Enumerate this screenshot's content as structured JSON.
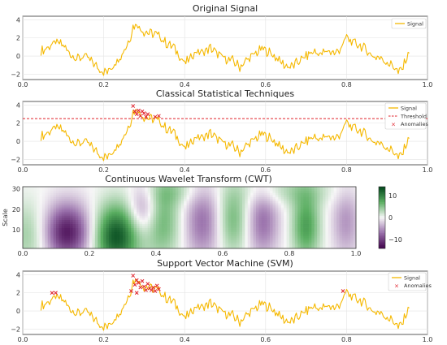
{
  "chart_data": [
    {
      "type": "line",
      "title": "Original Signal",
      "x_range": [
        0,
        1
      ],
      "y_range": [
        -2.6,
        4.4
      ],
      "x_ticks": [
        "0.0",
        "0.2",
        "0.4",
        "0.6",
        "0.8",
        "1.0"
      ],
      "x_tick_values": [
        0,
        0.2,
        0.4,
        0.6,
        0.8,
        1.0
      ],
      "y_ticks": [
        "−2",
        "0",
        "2",
        "4"
      ],
      "y_tick_values": [
        -2,
        0,
        2,
        4
      ],
      "grid": true,
      "legend_position": "top-right",
      "series": [
        {
          "name": "Signal",
          "color": "#f5b800",
          "control_points": [
            [
              0,
              0.5
            ],
            [
              0.02,
              1.0
            ],
            [
              0.04,
              1.5
            ],
            [
              0.06,
              1.2
            ],
            [
              0.08,
              0.2
            ],
            [
              0.1,
              -0.3
            ],
            [
              0.12,
              0.0
            ],
            [
              0.14,
              -0.7
            ],
            [
              0.16,
              -1.5
            ],
            [
              0.18,
              -1.8
            ],
            [
              0.2,
              -0.8
            ],
            [
              0.22,
              0.2
            ],
            [
              0.24,
              1.8
            ],
            [
              0.25,
              3.2
            ],
            [
              0.26,
              3.6
            ],
            [
              0.27,
              3.0
            ],
            [
              0.28,
              2.7
            ],
            [
              0.3,
              2.5
            ],
            [
              0.32,
              2.3
            ],
            [
              0.34,
              1.4
            ],
            [
              0.36,
              1.0
            ],
            [
              0.38,
              -0.2
            ],
            [
              0.39,
              -0.8
            ],
            [
              0.4,
              -0.5
            ],
            [
              0.42,
              0.5
            ],
            [
              0.44,
              0.4
            ],
            [
              0.46,
              0.9
            ],
            [
              0.48,
              0.2
            ],
            [
              0.5,
              -0.3
            ],
            [
              0.52,
              -0.5
            ],
            [
              0.54,
              -1.2
            ],
            [
              0.56,
              -0.4
            ],
            [
              0.58,
              0.2
            ],
            [
              0.6,
              0.8
            ],
            [
              0.62,
              0.4
            ],
            [
              0.64,
              -0.2
            ],
            [
              0.66,
              -1.0
            ],
            [
              0.68,
              -1.2
            ],
            [
              0.7,
              -0.6
            ],
            [
              0.72,
              0.0
            ],
            [
              0.74,
              0.5
            ],
            [
              0.76,
              0.2
            ],
            [
              0.78,
              0.6
            ],
            [
              0.8,
              0.3
            ],
            [
              0.82,
              1.2
            ],
            [
              0.83,
              2.2
            ],
            [
              0.84,
              1.6
            ],
            [
              0.86,
              1.3
            ],
            [
              0.88,
              0.8
            ],
            [
              0.9,
              0.0
            ],
            [
              0.92,
              -0.2
            ],
            [
              0.94,
              -0.7
            ],
            [
              0.96,
              -1.2
            ],
            [
              0.97,
              -1.8
            ],
            [
              0.98,
              -1.5
            ],
            [
              0.99,
              -0.5
            ],
            [
              1.0,
              0.5
            ]
          ]
        }
      ]
    },
    {
      "type": "line",
      "title": "Classical Statistical Techniques",
      "x_range": [
        0,
        1
      ],
      "y_range": [
        -2.6,
        4.4
      ],
      "x_ticks": [
        "0.0",
        "0.2",
        "0.4",
        "0.6",
        "0.8",
        "1.0"
      ],
      "x_tick_values": [
        0,
        0.2,
        0.4,
        0.6,
        0.8,
        1.0
      ],
      "y_ticks": [
        "−2",
        "0",
        "2",
        "4"
      ],
      "y_tick_values": [
        -2,
        0,
        2,
        4
      ],
      "grid": true,
      "legend_position": "top-right",
      "threshold": {
        "name": "Threshold",
        "value": 2.5,
        "color": "#e0202a"
      },
      "anomalies": {
        "name": "Anomalies",
        "color": "#e0202a",
        "points": [
          [
            0.25,
            3.9
          ],
          [
            0.255,
            3.3
          ],
          [
            0.26,
            3.0
          ],
          [
            0.265,
            3.4
          ],
          [
            0.27,
            2.8
          ],
          [
            0.275,
            3.3
          ],
          [
            0.28,
            3.1
          ],
          [
            0.285,
            2.7
          ],
          [
            0.29,
            3.0
          ],
          [
            0.31,
            2.7
          ],
          [
            0.32,
            2.8
          ]
        ]
      },
      "series": [
        {
          "name": "Signal",
          "color": "#f5b800",
          "same_as": 0
        }
      ]
    },
    {
      "type": "heatmap",
      "title": "Continuous Wavelet Transform (CWT)",
      "x_range": [
        0,
        1
      ],
      "y_range": [
        1,
        31
      ],
      "x_ticks": [
        "0.0",
        "0.2",
        "0.4",
        "0.6",
        "0.8",
        "1.0"
      ],
      "x_tick_values": [
        0,
        0.2,
        0.4,
        0.6,
        0.8,
        1.0
      ],
      "y_ticks": [
        "10",
        "20",
        "30"
      ],
      "y_tick_values": [
        10,
        20,
        30
      ],
      "ylabel": "Scale",
      "colormap": "PRGn",
      "colorbar_range": [
        -14,
        14
      ],
      "colorbar_ticks": [
        "10",
        "0",
        "−10"
      ],
      "colorbar_tick_values": [
        10,
        0,
        -10
      ],
      "components": [
        {
          "center_x": 0.03,
          "sign": 1,
          "amp": 5,
          "width": 0.05,
          "scale_center": 8,
          "scale_width": 11
        },
        {
          "center_x": 0.13,
          "sign": -1,
          "amp": 13,
          "width": 0.055,
          "scale_center": 9,
          "scale_width": 10
        },
        {
          "center_x": 0.28,
          "sign": 1,
          "amp": 13,
          "width": 0.05,
          "scale_center": 7,
          "scale_width": 11
        },
        {
          "center_x": 0.36,
          "sign": -1,
          "amp": 6,
          "width": 0.03,
          "scale_center": 20,
          "scale_width": 9
        },
        {
          "center_x": 0.42,
          "sign": 1,
          "amp": 6,
          "width": 0.04,
          "scale_center": 14,
          "scale_width": 13
        },
        {
          "center_x": 0.54,
          "sign": -1,
          "amp": 7,
          "width": 0.04,
          "scale_center": 14,
          "scale_width": 13
        },
        {
          "center_x": 0.63,
          "sign": 1,
          "amp": 6,
          "width": 0.035,
          "scale_center": 15,
          "scale_width": 12
        },
        {
          "center_x": 0.72,
          "sign": -1,
          "amp": 7,
          "width": 0.035,
          "scale_center": 14,
          "scale_width": 12
        },
        {
          "center_x": 0.85,
          "sign": 1,
          "amp": 8,
          "width": 0.03,
          "scale_center": 12,
          "scale_width": 12
        },
        {
          "center_x": 0.97,
          "sign": -1,
          "amp": 5,
          "width": 0.03,
          "scale_center": 14,
          "scale_width": 12
        },
        {
          "center_x": 0.45,
          "sign": 1,
          "amp": 3,
          "width": 0.06,
          "scale_center": 29,
          "scale_width": 5
        },
        {
          "center_x": 0.8,
          "sign": 1,
          "amp": 3,
          "width": 0.1,
          "scale_center": 29,
          "scale_width": 5
        }
      ]
    },
    {
      "type": "line",
      "title": "Support Vector Machine (SVM)",
      "x_range": [
        0,
        1
      ],
      "y_range": [
        -2.6,
        4.4
      ],
      "x_ticks": [
        "0.0",
        "0.2",
        "0.4",
        "0.6",
        "0.8",
        "1.0"
      ],
      "x_tick_values": [
        0,
        0.2,
        0.4,
        0.6,
        0.8,
        1.0
      ],
      "y_ticks": [
        "−2",
        "0",
        "2",
        "4"
      ],
      "y_tick_values": [
        -2,
        0,
        2,
        4
      ],
      "grid": true,
      "legend_position": "top-right",
      "anomalies": {
        "name": "Anomalies",
        "color": "#e0202a",
        "points": [
          [
            0.03,
            2.0
          ],
          [
            0.04,
            2.0
          ],
          [
            0.245,
            2.2
          ],
          [
            0.25,
            3.9
          ],
          [
            0.255,
            2.9
          ],
          [
            0.26,
            3.4
          ],
          [
            0.265,
            3.1
          ],
          [
            0.27,
            2.6
          ],
          [
            0.275,
            3.3
          ],
          [
            0.28,
            2.7
          ],
          [
            0.285,
            2.3
          ],
          [
            0.29,
            3.0
          ],
          [
            0.295,
            2.5
          ],
          [
            0.3,
            2.3
          ],
          [
            0.305,
            2.6
          ],
          [
            0.31,
            2.2
          ],
          [
            0.315,
            2.8
          ],
          [
            0.32,
            2.4
          ],
          [
            0.26,
            2.0
          ],
          [
            0.82,
            2.2
          ]
        ]
      },
      "series": [
        {
          "name": "Signal",
          "color": "#f5b800",
          "same_as": 0
        }
      ]
    }
  ]
}
